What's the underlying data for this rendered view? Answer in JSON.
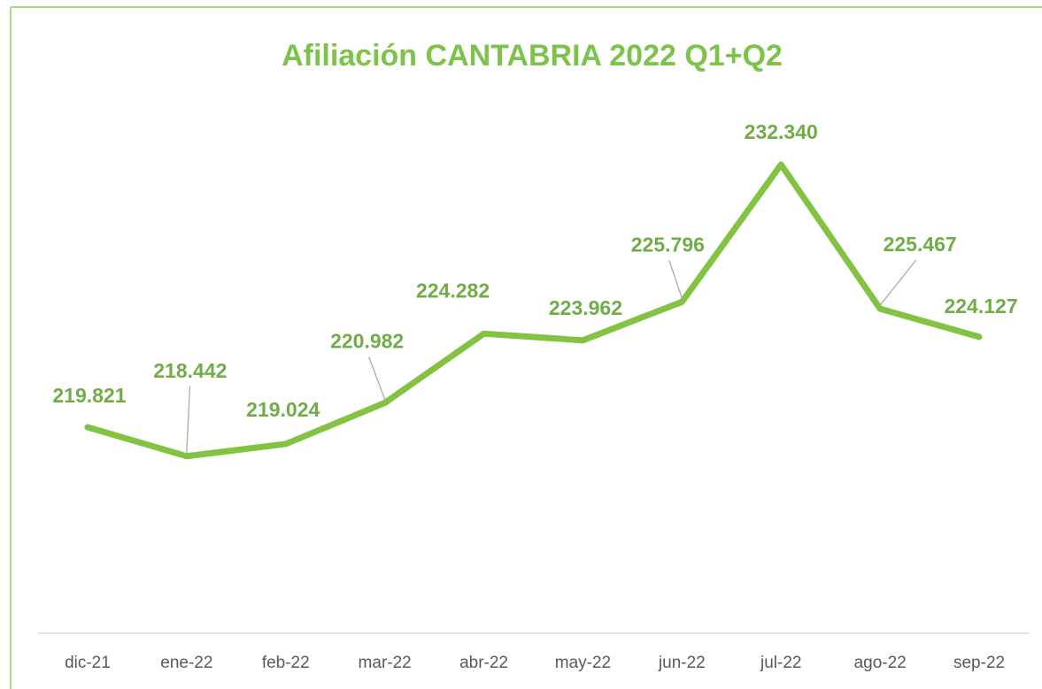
{
  "chart_data": {
    "type": "line",
    "title": "Afiliación CANTABRIA 2022 Q1+Q2",
    "categories": [
      "dic-21",
      "ene-22",
      "feb-22",
      "mar-22",
      "abr-22",
      "may-22",
      "jun-22",
      "jul-22",
      "ago-22",
      "sep-22"
    ],
    "series": [
      {
        "name": "Afiliación",
        "color": "#82c341",
        "values": [
          219821,
          218442,
          219024,
          220982,
          224282,
          223962,
          225796,
          232340,
          225467,
          224127
        ],
        "value_labels": [
          "219.821",
          "218.442",
          "219.024",
          "220.982",
          "224.282",
          "223.962",
          "225.796",
          "232.340",
          "225.467",
          "224.127"
        ]
      }
    ],
    "ylim": [
      210000,
      235000
    ]
  }
}
